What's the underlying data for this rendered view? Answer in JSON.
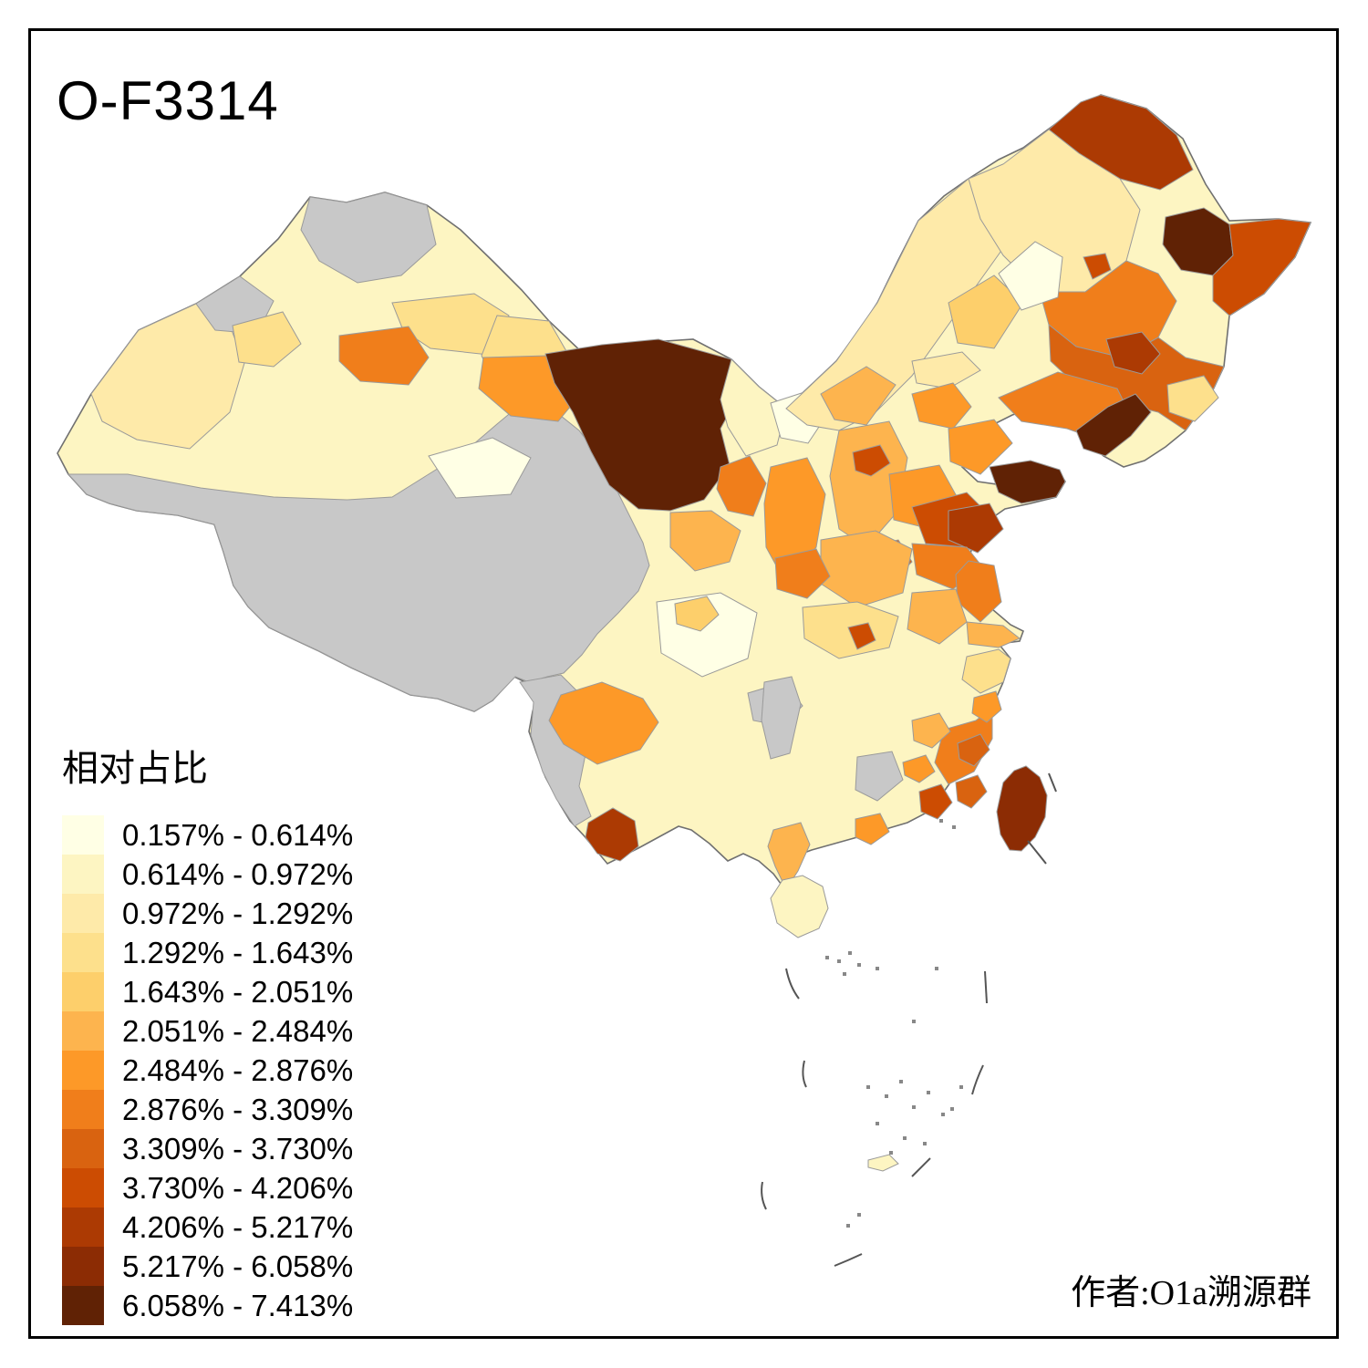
{
  "title": "O-F3314",
  "attribution": "作者:O1a溯源群",
  "legend": {
    "title": "相对占比",
    "classes": [
      {
        "label": "0.157% - 0.614%",
        "color": "#FFFFE5"
      },
      {
        "label": "0.614% - 0.972%",
        "color": "#FDF5C2"
      },
      {
        "label": "0.972% - 1.292%",
        "color": "#FEEAA9"
      },
      {
        "label": "1.292% - 1.643%",
        "color": "#FDE08C"
      },
      {
        "label": "1.643% - 2.051%",
        "color": "#FDCF6B"
      },
      {
        "label": "2.051% - 2.484%",
        "color": "#FDB44E"
      },
      {
        "label": "2.484% - 2.876%",
        "color": "#FD9928"
      },
      {
        "label": "2.876% - 3.309%",
        "color": "#F07E1B"
      },
      {
        "label": "3.309% - 3.730%",
        "color": "#D96310"
      },
      {
        "label": "3.730% - 4.206%",
        "color": "#CC4C02"
      },
      {
        "label": "4.206% - 5.217%",
        "color": "#AC3A03"
      },
      {
        "label": "5.217% - 6.058%",
        "color": "#8C2C04"
      },
      {
        "label": "6.058% - 7.413%",
        "color": "#602205"
      }
    ]
  },
  "map": {
    "no_data_color": "#C8C8C8",
    "sea_color": "#FFFFFF",
    "regions": {
      "mainland-base": 2,
      "xinjiang-west-band": 3,
      "altay-north": 0,
      "nw-border-patch": 0,
      "ili-valley": 4,
      "bogda-east": 4,
      "urumqi-turpan": 8,
      "xinjiang-east": 4,
      "tibet-qinghai-plateau": 0,
      "golmud-basin": 1,
      "qinghai-orange-pocket": 7,
      "hexi-corridor": 7,
      "alxa-west-inner-mongolia": 13,
      "bayannur": 2,
      "hetao-white-pocket": 1,
      "ningxia": 8,
      "lanzhou-gansu": 6,
      "inner-mongolia-band": 3,
      "ulanqab-orange": 6,
      "chifeng": 5,
      "mohe-north": 11,
      "hulunbuir": 3,
      "hulunbuir-dark-spot": 10,
      "heilongjiang-west": 8,
      "hegang-jiamusi": 13,
      "heilongjiang-east": 10,
      "baicheng-white": 1,
      "jilin-east": 9,
      "changbai-pale": 4,
      "shenyang-dark": 11,
      "liaoning": 8,
      "dalian-peninsula": 13,
      "zhangjiakou": 3,
      "beijing": 7,
      "tangshan-tianjin": 7,
      "shanxi": 6,
      "shijiazhuang-dark": 10,
      "hebei-south": 7,
      "changzhi-dark": 9,
      "shandong-west": 10,
      "shandong-peninsula": 13,
      "shandong-central": 11,
      "shandong-south": 8,
      "henan": 6,
      "jiangsu-north": 8,
      "anhui": 6,
      "jiangsu-south": 6,
      "hubei": 4,
      "yichang-dark-spot": 10,
      "shaanxi": 7,
      "xian": 8,
      "sichuan-basin": 1,
      "chengdu": 5,
      "chongqing-southeast-grey": 0,
      "hunan-west-grey": 0,
      "hunan-south-grey": 0,
      "yunnan-west-grey": 0,
      "yunnan-central-band": 7,
      "xishuangbanna": 11,
      "beihai-orange": 7,
      "leizhou-peninsula": 6,
      "pearl-delta-dark": 10,
      "chaoshan-dark": 9,
      "fujian-coast": 8,
      "quanzhou-dark": 9,
      "jiangxi-orange-1": 6,
      "jiangxi-orange-2": 7,
      "zhejiang": 4,
      "wenzhou-orange": 7,
      "taiwan": 12,
      "hainan": 2,
      "scs-island": 2
    }
  }
}
